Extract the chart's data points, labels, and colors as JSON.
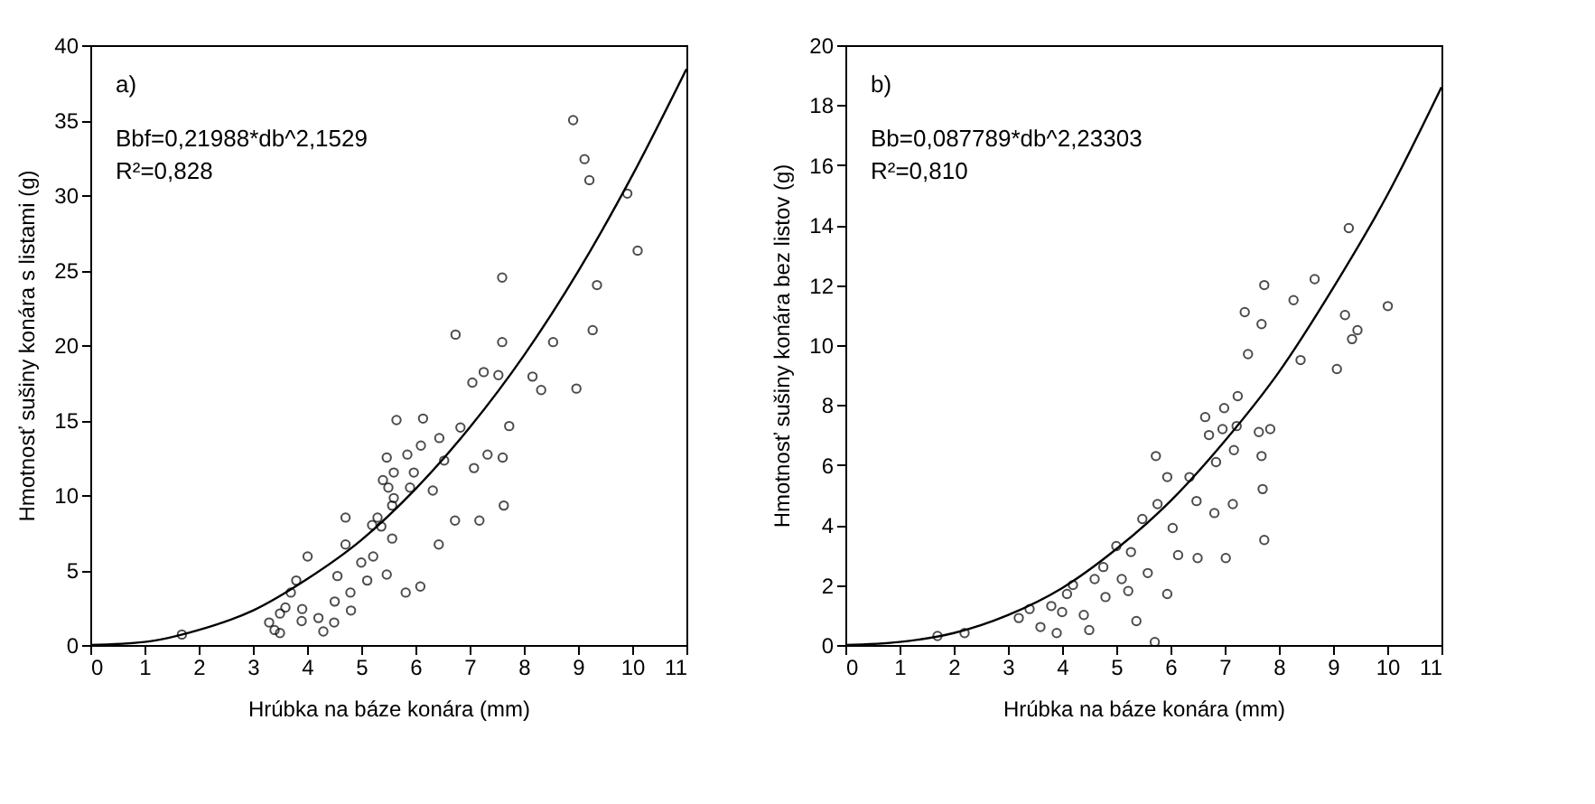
{
  "chart_data": [
    {
      "type": "scatter",
      "xlabel": "Hrúbka na báze konára (mm)",
      "ylabel": "Hmotnosť sušiny konára s listami (g)",
      "xlim": [
        0,
        11
      ],
      "xticks": [
        0,
        1,
        2,
        3,
        4,
        5,
        6,
        7,
        8,
        9,
        10,
        11
      ],
      "ylim": [
        0,
        40
      ],
      "yticks": [
        0,
        5,
        10,
        15,
        20,
        25,
        30,
        35,
        40
      ],
      "grid": false,
      "annotations": [
        "a)",
        "Bbf=0,21988*db^2,1529",
        "R²=0,828"
      ],
      "series": [
        {
          "marker": "circle",
          "color": "#000000",
          "x": [
            8.91,
            9.12,
            9.21,
            9.91,
            10.1,
            9.35,
            9.27,
            8.97,
            7.6,
            7.6,
            6.74,
            8.54,
            8.16,
            8.32,
            7.26,
            7.53,
            7.05,
            5.65,
            6.14,
            5.47,
            5.85,
            5.97,
            6.44,
            6.83,
            7.73,
            7.61,
            7.33,
            7.08,
            6.53,
            6.32,
            5.57,
            7.63,
            7.18,
            6.73,
            6.43,
            6.09,
            5.82,
            4.71,
            4.71,
            4.01,
            5.22,
            5.11,
            4.56,
            5.47,
            5.37,
            5.57,
            4.51,
            4.81,
            3.91,
            3.4,
            4.21,
            1.69,
            3.3,
            3.5,
            3.6,
            3.7,
            3.8,
            3.5,
            3.9,
            4.3,
            4.5,
            4.8,
            5.0,
            5.2,
            5.3,
            5.5,
            5.6,
            5.4,
            5.6,
            5.9,
            6.1
          ],
          "values": [
            35.0,
            32.4,
            31.0,
            30.1,
            26.3,
            24.0,
            21.0,
            17.1,
            24.5,
            20.2,
            20.7,
            20.2,
            17.9,
            17.0,
            18.2,
            18.0,
            17.5,
            15.0,
            15.1,
            12.5,
            12.7,
            11.5,
            13.8,
            14.5,
            14.6,
            12.5,
            12.7,
            11.8,
            12.3,
            10.3,
            9.3,
            9.3,
            8.3,
            8.3,
            6.7,
            3.9,
            3.5,
            8.5,
            6.7,
            5.9,
            5.9,
            4.3,
            4.6,
            4.7,
            7.9,
            7.1,
            2.9,
            2.3,
            2.4,
            1.0,
            1.8,
            0.7,
            1.5,
            0.8,
            2.5,
            3.5,
            4.3,
            2.1,
            1.6,
            0.9,
            1.5,
            3.5,
            5.5,
            8.0,
            8.5,
            10.5,
            11.5,
            11.0,
            9.8,
            10.5,
            13.3
          ]
        },
        {
          "type": "line",
          "color": "#000000",
          "x": [
            0,
            1,
            2,
            3,
            4,
            5,
            6,
            7,
            8,
            9,
            10,
            11
          ],
          "values": [
            0,
            0.2,
            1.0,
            2.3,
            4.4,
            7.0,
            10.4,
            14.5,
            19.3,
            24.9,
            31.3,
            38.4
          ]
        }
      ]
    },
    {
      "type": "scatter",
      "xlabel": "Hrúbka na báze konára (mm)",
      "ylabel": "Hmotnosť sušiny konára bez listov (g)",
      "xlim": [
        0,
        11
      ],
      "xticks": [
        0,
        1,
        2,
        3,
        4,
        5,
        6,
        7,
        8,
        9,
        10,
        11
      ],
      "ylim": [
        0,
        20
      ],
      "yticks": [
        0,
        2,
        4,
        6,
        8,
        10,
        12,
        14,
        16,
        18,
        20
      ],
      "grid": false,
      "annotations": [
        "b)",
        "Bb=0,087789*db^2,23303",
        "R²=0,810"
      ],
      "series": [
        {
          "marker": "circle",
          "color": "#000000",
          "x": [
            9.29,
            8.66,
            7.73,
            8.27,
            10.01,
            9.22,
            9.45,
            9.35,
            7.37,
            7.68,
            8.4,
            9.07,
            7.43,
            7.24,
            6.99,
            6.64,
            6.71,
            6.96,
            7.22,
            7.63,
            7.84,
            6.84,
            7.17,
            7.68,
            7.7,
            7.73,
            7.02,
            7.15,
            6.81,
            6.48,
            5.73,
            5.94,
            6.35,
            5.76,
            5.48,
            6.04,
            6.14,
            6.5,
            5.27,
            4.76,
            5.58,
            4.09,
            5.22,
            5.94,
            5.37,
            5.71,
            1.7,
            2.2,
            3.2,
            3.4,
            3.6,
            3.8,
            3.9,
            4.0,
            4.2,
            4.4,
            4.6,
            4.8,
            5.0,
            5.1,
            4.5
          ],
          "values": [
            13.9,
            12.2,
            12.0,
            11.5,
            11.3,
            11.0,
            10.5,
            10.2,
            11.1,
            10.7,
            9.5,
            9.2,
            9.7,
            8.3,
            7.9,
            7.6,
            7.0,
            7.2,
            7.3,
            7.1,
            7.2,
            6.1,
            6.5,
            6.3,
            5.2,
            3.5,
            2.9,
            4.7,
            4.4,
            4.8,
            6.3,
            5.6,
            5.6,
            4.7,
            4.2,
            3.9,
            3.0,
            2.9,
            3.1,
            2.6,
            2.4,
            1.7,
            1.8,
            1.7,
            0.8,
            0.1,
            0.3,
            0.4,
            0.9,
            1.2,
            0.6,
            1.3,
            0.4,
            1.1,
            2.0,
            1.0,
            2.2,
            1.6,
            3.3,
            2.2,
            0.5
          ]
        },
        {
          "type": "line",
          "color": "#000000",
          "x": [
            0,
            1,
            2,
            3,
            4,
            5,
            6,
            7,
            8,
            9,
            10,
            11
          ],
          "values": [
            0,
            0.1,
            0.4,
            1.0,
            1.9,
            3.2,
            4.8,
            6.8,
            9.1,
            11.9,
            15.0,
            18.6
          ]
        }
      ]
    }
  ]
}
